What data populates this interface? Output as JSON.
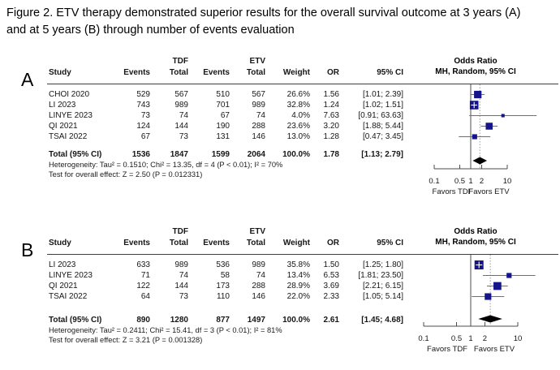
{
  "figure_title": "Figure 2. ETV therapy demonstrated superior results for the overall survival outcome at 3 years (A) and at 5 years (B) through number of events evaluation",
  "table_headers": {
    "study": "Study",
    "events": "Events",
    "total": "Total",
    "tdf_group": "TDF",
    "etv_group": "ETV",
    "weight": "Weight",
    "or": "OR",
    "ci": "95% CI",
    "plot_line1": "Odds Ratio",
    "plot_line2": "MH, Random, 95% CI"
  },
  "axis_labels": {
    "favors_left": "Favors TDF",
    "favors_right": "Favors ETV"
  },
  "colors": {
    "square": "#14148b",
    "ci_line": "#6f6f6f",
    "axis": "#4c4c4c",
    "diamond": "#000000",
    "dotted_line": "#9a9a9a"
  },
  "chart_data": [
    {
      "type": "forest",
      "panel": "A",
      "outcome": "overall survival at 3 years",
      "effect_measure": "Odds Ratio, MH, Random, 95% CI",
      "axis_ticks": [
        0.1,
        0.5,
        1,
        2,
        10
      ],
      "studies": [
        {
          "study": "CHOI 2020",
          "tdf_events": "529",
          "tdf_total": "567",
          "etv_events": "510",
          "etv_total": "567",
          "weight": "26.6%",
          "or": 1.56,
          "or_text": "1.56",
          "ci_low": 1.01,
          "ci_high": 2.39,
          "ci_text": "[1.01; 2.39]"
        },
        {
          "study": "LI 2023",
          "tdf_events": "743",
          "tdf_total": "989",
          "etv_events": "701",
          "etv_total": "989",
          "weight": "32.8%",
          "or": 1.24,
          "or_text": "1.24",
          "ci_low": 1.02,
          "ci_high": 1.51,
          "ci_text": "[1.02; 1.51]"
        },
        {
          "study": "LINYE 2023",
          "tdf_events": "73",
          "tdf_total": "74",
          "etv_events": "67",
          "etv_total": "74",
          "weight": "4.0%",
          "or": 7.63,
          "or_text": "7.63",
          "ci_low": 0.91,
          "ci_high": 63.63,
          "ci_text": "[0.91; 63.63]"
        },
        {
          "study": "QI 2021",
          "tdf_events": "124",
          "tdf_total": "144",
          "etv_events": "190",
          "etv_total": "288",
          "weight": "23.6%",
          "or": 3.2,
          "or_text": "3.20",
          "ci_low": 1.88,
          "ci_high": 5.44,
          "ci_text": "[1.88; 5.44]"
        },
        {
          "study": "TSAI 2022",
          "tdf_events": "67",
          "tdf_total": "73",
          "etv_events": "131",
          "etv_total": "146",
          "weight": "13.0%",
          "or": 1.28,
          "or_text": "1.28",
          "ci_low": 0.47,
          "ci_high": 3.45,
          "ci_text": "[0.47; 3.45]"
        }
      ],
      "total": {
        "label": "Total (95% CI)",
        "tdf_events": "1536",
        "tdf_total": "1847",
        "etv_events": "1599",
        "etv_total": "2064",
        "weight": "100.0%",
        "or": 1.78,
        "or_text": "1.78",
        "ci_low": 1.13,
        "ci_high": 2.79,
        "ci_text": "[1.13; 2.79]"
      },
      "heterogeneity": "Heterogeneity: Tau² = 0.1510; Chi² = 13.35, df = 4 (P < 0.01); I² = 70%",
      "overall_test": "Test for overall effect: Z = 2.50 (P = 0.012331)"
    },
    {
      "type": "forest",
      "panel": "B",
      "outcome": "overall survival at 5 years",
      "effect_measure": "Odds Ratio, MH, Random, 95% CI",
      "axis_ticks": [
        0.1,
        0.5,
        1,
        2,
        10
      ],
      "studies": [
        {
          "study": "LI 2023",
          "tdf_events": "633",
          "tdf_total": "989",
          "etv_events": "536",
          "etv_total": "989",
          "weight": "35.8%",
          "or": 1.5,
          "or_text": "1.50",
          "ci_low": 1.25,
          "ci_high": 1.8,
          "ci_text": "[1.25; 1.80]"
        },
        {
          "study": "LINYE 2023",
          "tdf_events": "71",
          "tdf_total": "74",
          "etv_events": "58",
          "etv_total": "74",
          "weight": "13.4%",
          "or": 6.53,
          "or_text": "6.53",
          "ci_low": 1.81,
          "ci_high": 23.5,
          "ci_text": "[1.81; 23.50]"
        },
        {
          "study": "QI 2021",
          "tdf_events": "122",
          "tdf_total": "144",
          "etv_events": "173",
          "etv_total": "288",
          "weight": "28.9%",
          "or": 3.69,
          "or_text": "3.69",
          "ci_low": 2.21,
          "ci_high": 6.15,
          "ci_text": "[2.21; 6.15]"
        },
        {
          "study": "TSAI 2022",
          "tdf_events": "64",
          "tdf_total": "73",
          "etv_events": "110",
          "etv_total": "146",
          "weight": "22.0%",
          "or": 2.33,
          "or_text": "2.33",
          "ci_low": 1.05,
          "ci_high": 5.14,
          "ci_text": "[1.05; 5.14]"
        }
      ],
      "total": {
        "label": "Total (95% CI)",
        "tdf_events": "890",
        "tdf_total": "1280",
        "etv_events": "877",
        "etv_total": "1497",
        "weight": "100.0%",
        "or": 2.61,
        "or_text": "2.61",
        "ci_low": 1.45,
        "ci_high": 4.68,
        "ci_text": "[1.45; 4.68]"
      },
      "heterogeneity": "Heterogeneity: Tau² = 0.2411; Chi² = 15.41, df = 3 (P < 0.01); I² = 81%",
      "overall_test": "Test for overall effect: Z = 3.21 (P = 0.001328)"
    }
  ]
}
